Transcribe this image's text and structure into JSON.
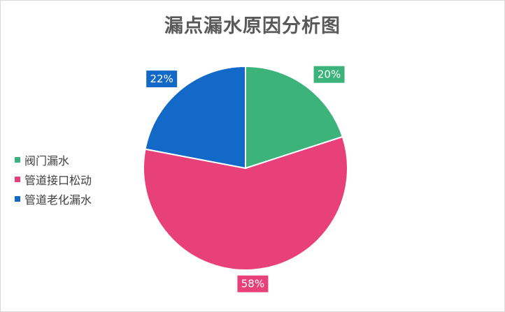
{
  "chart_data": {
    "type": "pie",
    "title": "漏点漏水原因分析图",
    "categories": [
      "阀门漏水",
      "管道接口松动",
      "管道老化漏水"
    ],
    "values": [
      20,
      58,
      22
    ],
    "data_labels": [
      "20%",
      "58%",
      "22%"
    ],
    "colors": [
      "#3cb37a",
      "#e8417a",
      "#1269c7"
    ],
    "start_angle_deg": 0,
    "direction": "clockwise",
    "legend_position": "left"
  }
}
